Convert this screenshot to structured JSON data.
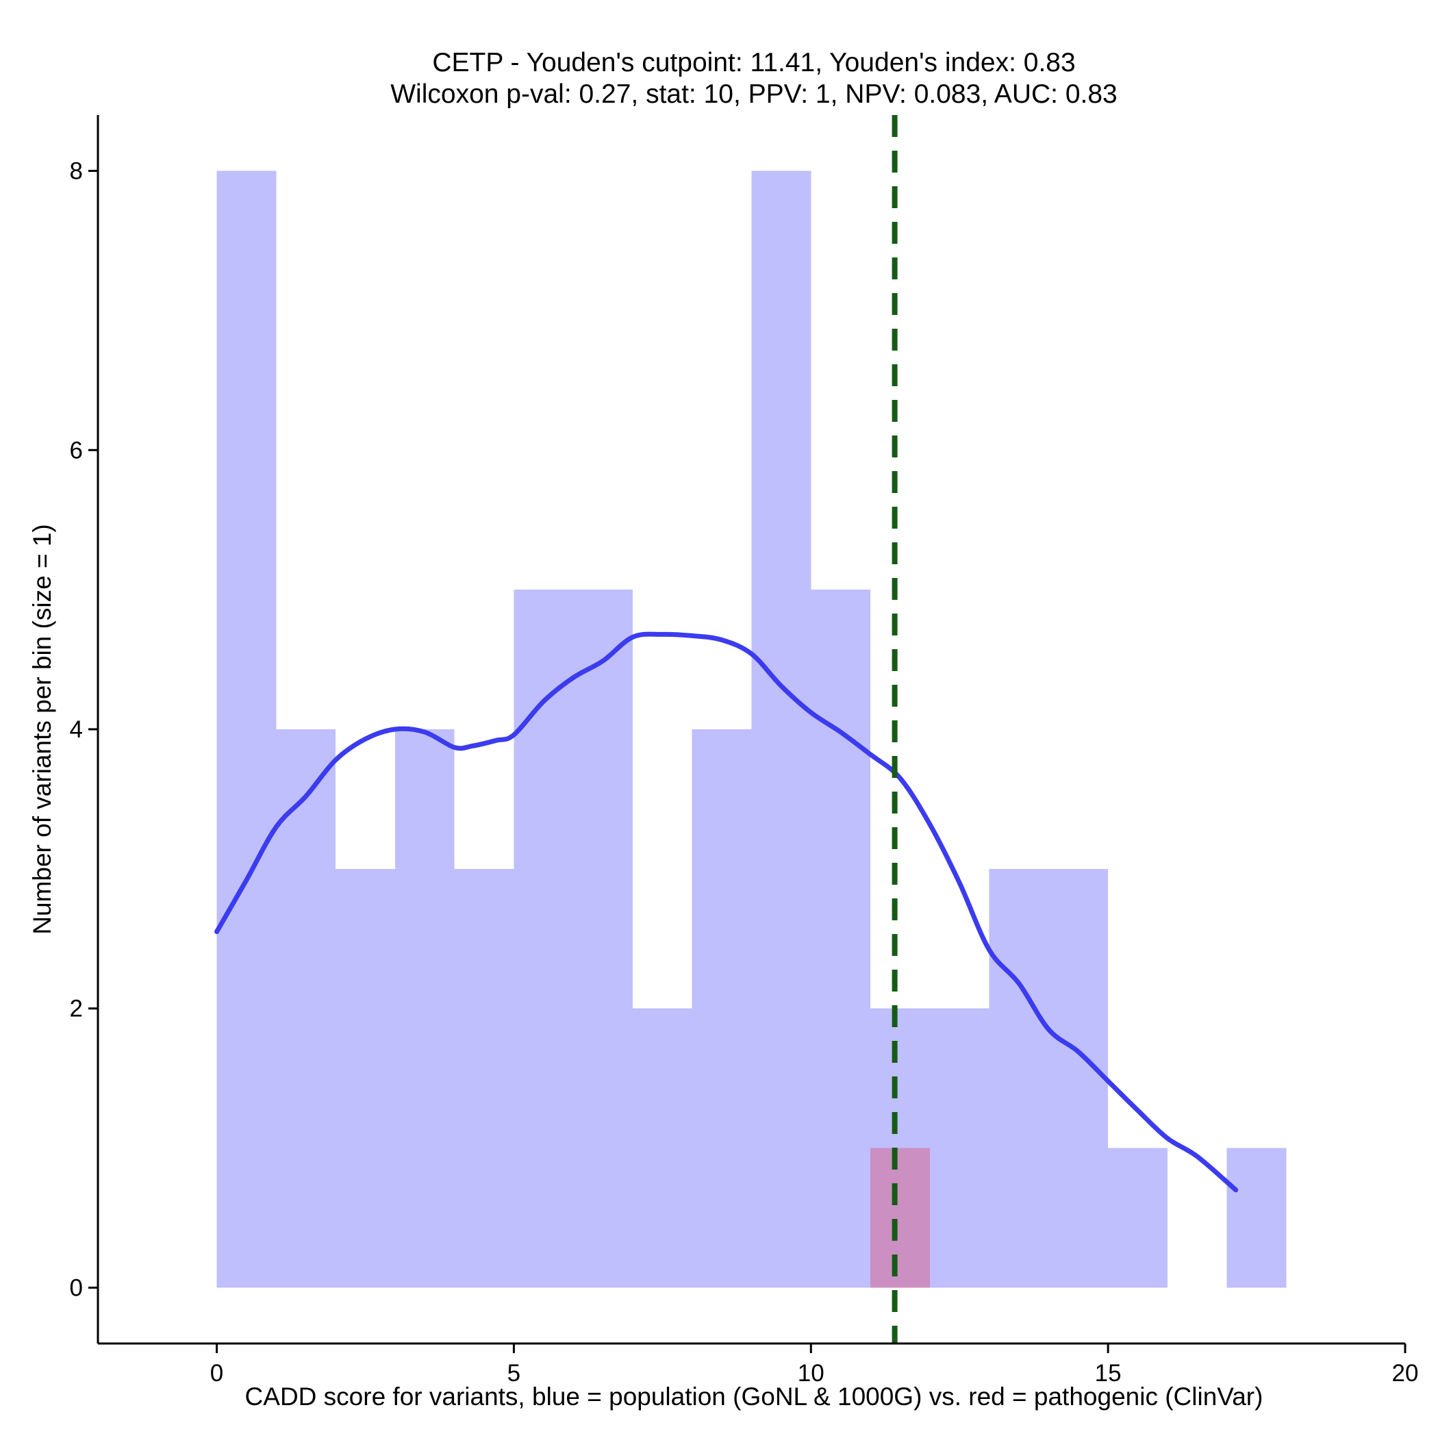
{
  "chart_data": {
    "type": "bar",
    "title_line1": "CETP - Youden's cutpoint: 11.41, Youden's index: 0.83",
    "title_line2": "Wilcoxon p-val: 0.27, stat: 10, PPV: 1, NPV: 0.083, AUC: 0.83",
    "xlabel": "CADD score for variants, blue = population (GoNL & 1000G) vs. red = pathogenic (ClinVar)",
    "ylabel": "Number of variants per bin (size = 1)",
    "xlim": [
      -2,
      20
    ],
    "ylim": [
      -0.4,
      8.4
    ],
    "xticks": [
      0,
      5,
      10,
      15,
      20
    ],
    "yticks": [
      0,
      2,
      4,
      6,
      8
    ],
    "bin_width": 1,
    "series": [
      {
        "color": "#bfbffd",
        "bins": [
          {
            "x0": 0,
            "count": 8
          },
          {
            "x0": 1,
            "count": 4
          },
          {
            "x0": 2,
            "count": 3
          },
          {
            "x0": 3,
            "count": 4
          },
          {
            "x0": 4,
            "count": 3
          },
          {
            "x0": 5,
            "count": 5
          },
          {
            "x0": 6,
            "count": 5
          },
          {
            "x0": 7,
            "count": 2
          },
          {
            "x0": 8,
            "count": 4
          },
          {
            "x0": 9,
            "count": 8
          },
          {
            "x0": 10,
            "count": 5
          },
          {
            "x0": 11,
            "count": 2
          },
          {
            "x0": 12,
            "count": 2
          },
          {
            "x0": 13,
            "count": 3
          },
          {
            "x0": 14,
            "count": 3
          },
          {
            "x0": 15,
            "count": 1
          },
          {
            "x0": 17,
            "count": 1
          }
        ]
      },
      {
        "color": "#cc8fc2",
        "bins": [
          {
            "x0": 11,
            "count": 1
          }
        ]
      }
    ],
    "density_curve": {
      "color": "#3b3bef",
      "x": [
        0,
        0.5,
        1,
        1.5,
        2,
        2.5,
        3,
        3.5,
        4,
        4.3,
        4.7,
        5,
        5.5,
        6,
        6.5,
        7,
        7.5,
        8,
        8.5,
        9,
        9.5,
        10,
        10.5,
        11,
        11.5,
        12,
        12.5,
        13,
        13.5,
        14,
        14.5,
        15,
        15.5,
        16,
        16.5,
        17.15
      ],
      "y": [
        2.55,
        2.92,
        3.3,
        3.52,
        3.78,
        3.93,
        4.0,
        3.98,
        3.87,
        3.88,
        3.92,
        3.96,
        4.2,
        4.37,
        4.49,
        4.66,
        4.68,
        4.67,
        4.64,
        4.54,
        4.31,
        4.12,
        3.98,
        3.82,
        3.65,
        3.32,
        2.9,
        2.42,
        2.18,
        1.85,
        1.69,
        1.48,
        1.27,
        1.07,
        0.94,
        0.7
      ]
    },
    "cutpoint": {
      "x": 11.41,
      "color": "#155b15",
      "style": "dashed"
    }
  }
}
